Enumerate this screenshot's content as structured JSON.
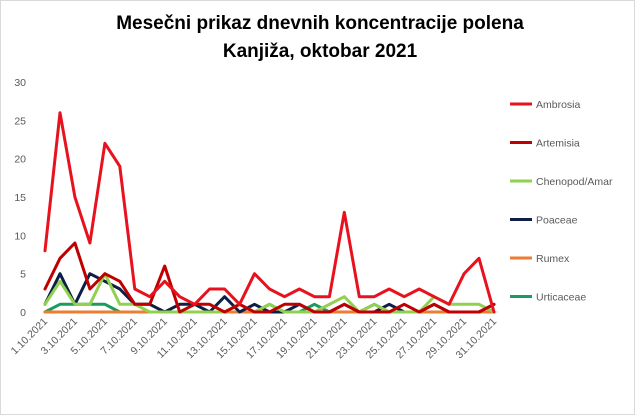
{
  "chart_data": {
    "type": "line",
    "title": [
      "Mesečni prikaz dnevnih koncentracije polena",
      "Kanjiža, oktobar 2021"
    ],
    "xlabel": "",
    "ylabel": "",
    "ylim": [
      0,
      30
    ],
    "yticks": [
      0,
      5,
      10,
      15,
      20,
      25,
      30
    ],
    "grid": false,
    "legend_position": "right",
    "categories": [
      "1.10.2021",
      "2.10.2021",
      "3.10.2021",
      "4.10.2021",
      "5.10.2021",
      "6.10.2021",
      "7.10.2021",
      "8.10.2021",
      "9.10.2021",
      "10.10.2021",
      "11.10.2021",
      "12.10.2021",
      "13.10.2021",
      "14.10.2021",
      "15.10.2021",
      "16.10.2021",
      "17.10.2021",
      "18.10.2021",
      "19.10.2021",
      "20.10.2021",
      "21.10.2021",
      "22.10.2021",
      "23.10.2021",
      "24.10.2021",
      "25.10.2021",
      "26.10.2021",
      "27.10.2021",
      "28.10.2021",
      "29.10.2021",
      "30.10.2021",
      "31.10.2021"
    ],
    "tick_labels": [
      "1.10.2021",
      "3.10.2021",
      "5.10.2021",
      "7.10.2021",
      "9.10.2021",
      "11.10.2021",
      "13.10.2021",
      "15.10.2021",
      "17.10.2021",
      "19.10.2021",
      "21.10.2021",
      "23.10.2021",
      "25.10.2021",
      "27.10.2021",
      "29.10.2021",
      "31.10.2021"
    ],
    "series": [
      {
        "name": "Ambrosia",
        "color": "#e8121e",
        "values": [
          8,
          26,
          15,
          9,
          22,
          19,
          3,
          2,
          4,
          2,
          1,
          3,
          3,
          1,
          5,
          3,
          2,
          3,
          2,
          2,
          13,
          2,
          2,
          3,
          2,
          3,
          2,
          1,
          5,
          7,
          0
        ]
      },
      {
        "name": "Artemisia",
        "color": "#c00000",
        "values": [
          3,
          7,
          9,
          3,
          5,
          4,
          1,
          1,
          6,
          0,
          1,
          1,
          0,
          1,
          0,
          0,
          1,
          1,
          0,
          0,
          1,
          0,
          0,
          0,
          1,
          0,
          1,
          0,
          0,
          0,
          1
        ]
      },
      {
        "name": "Chenopod/Amar",
        "color": "#92d050",
        "values": [
          1,
          4,
          1,
          1,
          5,
          1,
          1,
          0,
          0,
          0,
          0,
          0,
          0,
          1,
          0,
          1,
          0,
          0,
          0,
          1,
          2,
          0,
          1,
          0,
          0,
          0,
          2,
          1,
          1,
          1,
          0
        ]
      },
      {
        "name": "Poaceae",
        "color": "#0e1f47",
        "values": [
          1,
          5,
          1,
          5,
          4,
          3,
          1,
          1,
          0,
          1,
          1,
          0,
          2,
          0,
          1,
          0,
          0,
          1,
          0,
          0,
          1,
          0,
          0,
          1,
          0,
          0,
          1,
          0,
          0,
          0,
          1
        ]
      },
      {
        "name": "Rumex",
        "color": "#ed7d31",
        "values": [
          0,
          0,
          0,
          0,
          0,
          0,
          0,
          0,
          0,
          0,
          0,
          0,
          0,
          0,
          0,
          0,
          0,
          0,
          0,
          0,
          0,
          0,
          0,
          0,
          0,
          0,
          0,
          0,
          0,
          0,
          0
        ]
      },
      {
        "name": "Urticaceae",
        "color": "#1a9c5c",
        "values": [
          0,
          1,
          1,
          1,
          1,
          0,
          0,
          0,
          0,
          0,
          0,
          0,
          0,
          0,
          0,
          1,
          0,
          0,
          1,
          0,
          0,
          0,
          1,
          0,
          0,
          0,
          0,
          0,
          0,
          0,
          0
        ]
      }
    ]
  }
}
